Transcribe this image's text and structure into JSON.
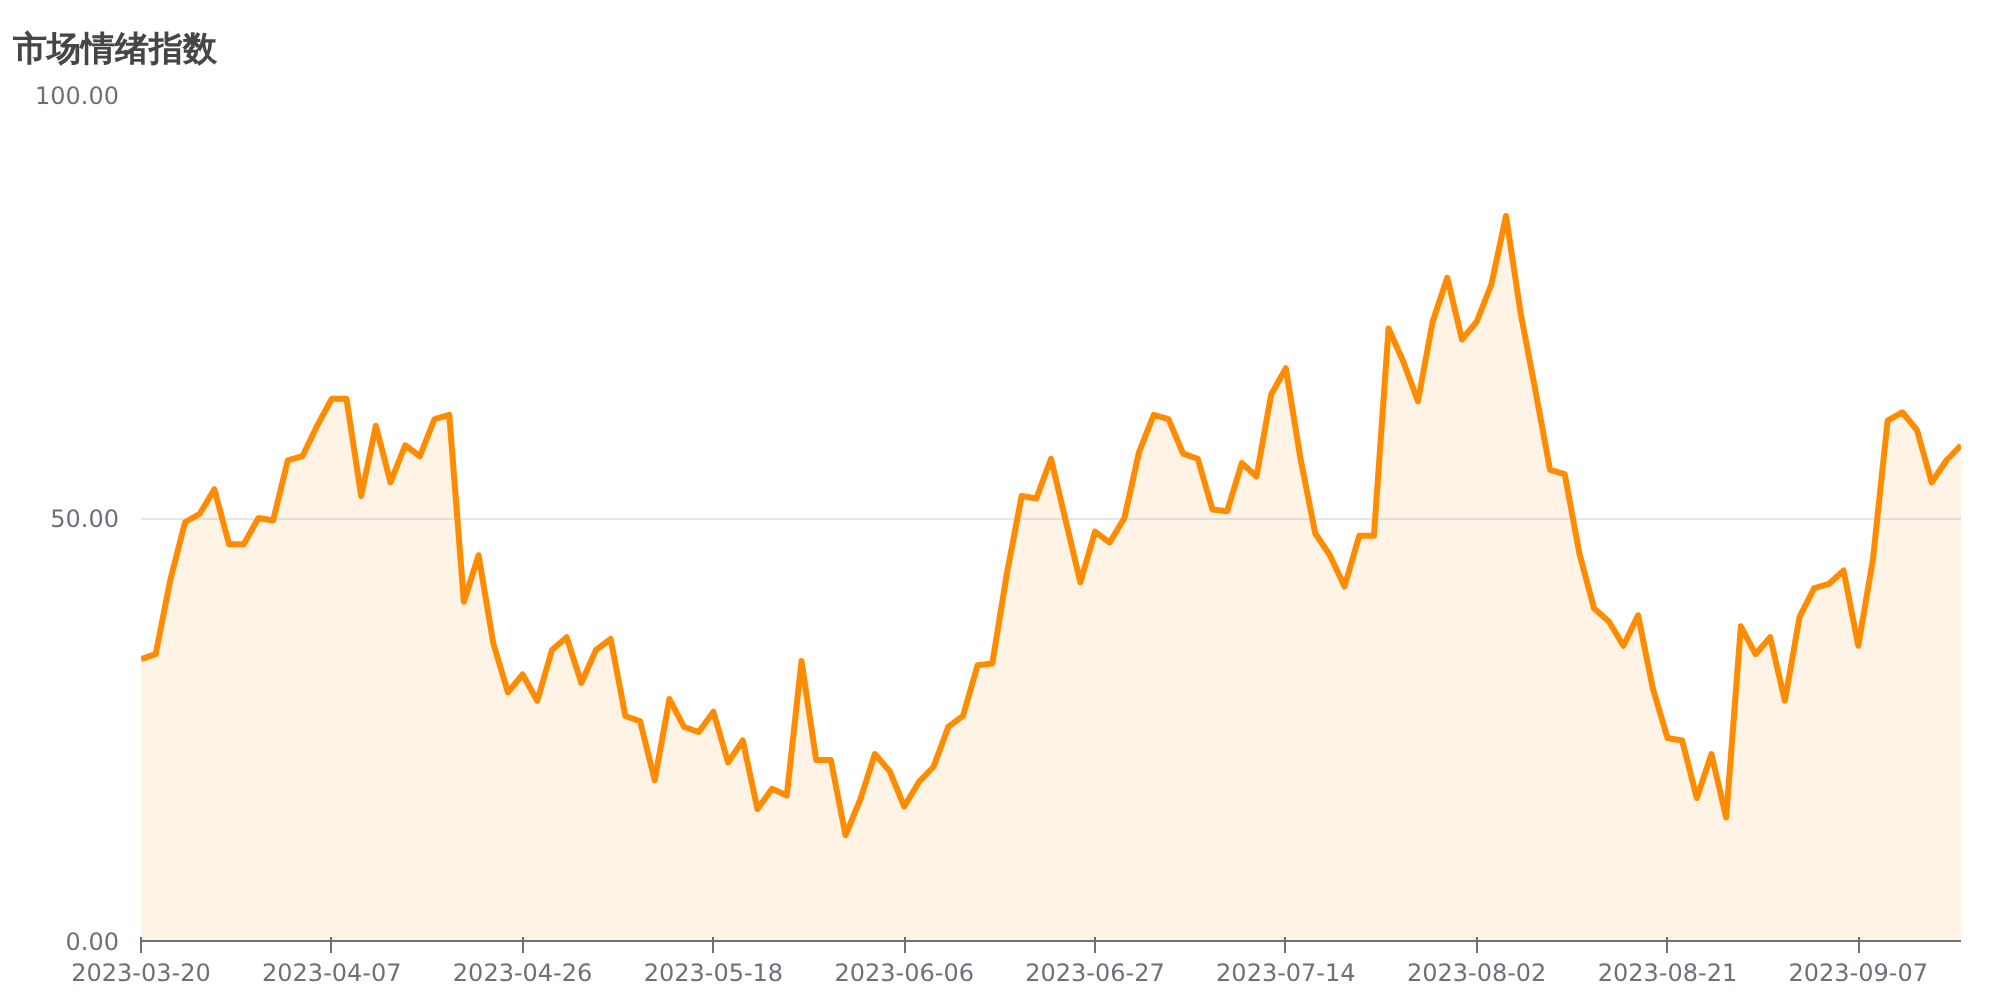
{
  "chart_data": {
    "type": "area",
    "title": "市场情绪指数",
    "categories": [
      "2023-03-20",
      null,
      null,
      null,
      null,
      null,
      null,
      null,
      null,
      null,
      null,
      null,
      null,
      "2023-04-07",
      null,
      null,
      null,
      null,
      null,
      null,
      null,
      null,
      null,
      null,
      null,
      null,
      "2023-04-26",
      null,
      null,
      null,
      null,
      null,
      null,
      null,
      null,
      null,
      null,
      null,
      null,
      "2023-05-18",
      null,
      null,
      null,
      null,
      null,
      null,
      null,
      null,
      null,
      null,
      null,
      null,
      "2023-06-06",
      null,
      null,
      null,
      null,
      null,
      null,
      null,
      null,
      null,
      null,
      null,
      null,
      "2023-06-27",
      null,
      null,
      null,
      null,
      null,
      null,
      null,
      null,
      null,
      null,
      null,
      null,
      "2023-07-14",
      null,
      null,
      null,
      null,
      null,
      null,
      null,
      null,
      null,
      null,
      null,
      null,
      "2023-08-02",
      null,
      null,
      null,
      null,
      null,
      null,
      null,
      null,
      null,
      null,
      null,
      null,
      "2023-08-21",
      null,
      null,
      null,
      null,
      null,
      null,
      null,
      null,
      null,
      null,
      null,
      null,
      "2023-09-07",
      null,
      null,
      null,
      null,
      null,
      null,
      null
    ],
    "series": [
      {
        "color": "#ff8c00",
        "values": [
          33.3,
          33.9,
          42.7,
          49.5,
          50.5,
          53.4,
          46.9,
          46.9,
          50.0,
          49.7,
          56.8,
          57.3,
          60.9,
          64.1,
          64.1,
          52.6,
          60.9,
          54.2,
          58.6,
          57.3,
          61.7,
          62.2,
          40.1,
          45.6,
          35.2,
          29.4,
          31.5,
          28.4,
          34.4,
          35.9,
          30.5,
          34.4,
          35.7,
          26.6,
          26.0,
          19.0,
          28.6,
          25.3,
          24.7,
          27.1,
          21.1,
          23.7,
          15.6,
          18.0,
          17.2,
          33.1,
          21.4,
          21.4,
          12.5,
          16.7,
          22.1,
          20.1,
          15.9,
          18.8,
          20.6,
          25.3,
          26.6,
          32.6,
          32.8,
          43.5,
          52.6,
          52.3,
          57.0,
          49.7,
          42.4,
          48.4,
          47.1,
          50.0,
          57.8,
          62.2,
          61.7,
          57.6,
          57.0,
          51.0,
          50.8,
          56.5,
          54.9,
          64.6,
          67.7,
          57.0,
          48.2,
          45.6,
          41.9,
          47.9,
          47.9,
          72.4,
          68.5,
          63.8,
          73.2,
          78.4,
          71.1,
          73.2,
          77.6,
          85.7,
          74.2,
          65.1,
          55.7,
          55.2,
          45.8,
          39.3,
          37.8,
          34.9,
          38.5,
          29.9,
          24.0,
          23.7,
          16.9,
          22.1,
          14.6,
          37.2,
          33.9,
          35.9,
          28.4,
          38.3,
          41.7,
          42.2,
          43.8,
          34.9,
          45.1,
          61.5,
          62.5,
          60.4,
          54.2,
          56.8,
          58.6
        ]
      }
    ],
    "ylim": [
      0,
      100
    ],
    "yticks": [
      {
        "value": 0,
        "label": "0.00"
      },
      {
        "value": 50,
        "label": "50.00"
      },
      {
        "value": 100,
        "label": "100.00"
      }
    ],
    "grid": "y"
  }
}
